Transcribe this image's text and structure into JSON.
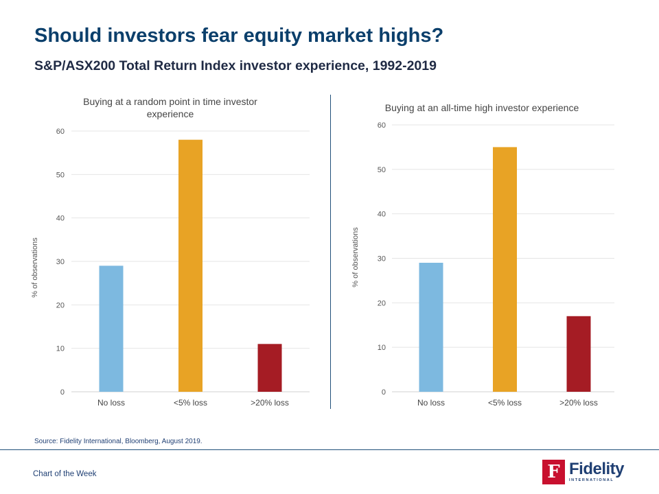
{
  "header": {
    "title": "Should investors fear equity market highs?",
    "subtitle": "S&P/ASX200 Total Return Index investor experience, 1992-2019"
  },
  "footer": {
    "source": "Source: Fidelity International, Bloomberg, August 2019.",
    "series_label": "Chart of the Week",
    "logo_word": "Fidelity",
    "logo_sub": "INTERNATIONAL",
    "logo_glyph": "F"
  },
  "colors": {
    "no_loss": "#7db9e0",
    "small_loss": "#e8a325",
    "large_loss": "#a51c24",
    "brand_red": "#c8102e",
    "brand_navy": "#1f3f73"
  },
  "chart_data": [
    {
      "type": "bar",
      "title": "Buying at a random point in time investor experience",
      "title_lines": [
        "Buying at a random point in time investor",
        "experience"
      ],
      "xlabel": "",
      "ylabel": "% of observations",
      "categories": [
        "No loss",
        "<5% loss",
        ">20% loss"
      ],
      "values": [
        29,
        58,
        11
      ],
      "bar_colors": [
        "#7db9e0",
        "#e8a325",
        "#a51c24"
      ],
      "ylim": [
        0,
        60
      ],
      "yticks": [
        0,
        10,
        20,
        30,
        40,
        50,
        60
      ],
      "grid": true,
      "legend": "none"
    },
    {
      "type": "bar",
      "title": "Buying at an all-time high investor experience",
      "title_lines": [
        "Buying at an all-time high investor experience"
      ],
      "xlabel": "",
      "ylabel": "% of observations",
      "categories": [
        "No loss",
        "<5% loss",
        ">20% loss"
      ],
      "values": [
        29,
        55,
        17
      ],
      "bar_colors": [
        "#7db9e0",
        "#e8a325",
        "#a51c24"
      ],
      "ylim": [
        0,
        60
      ],
      "yticks": [
        0,
        10,
        20,
        30,
        40,
        50,
        60
      ],
      "grid": true,
      "legend": "none"
    }
  ]
}
